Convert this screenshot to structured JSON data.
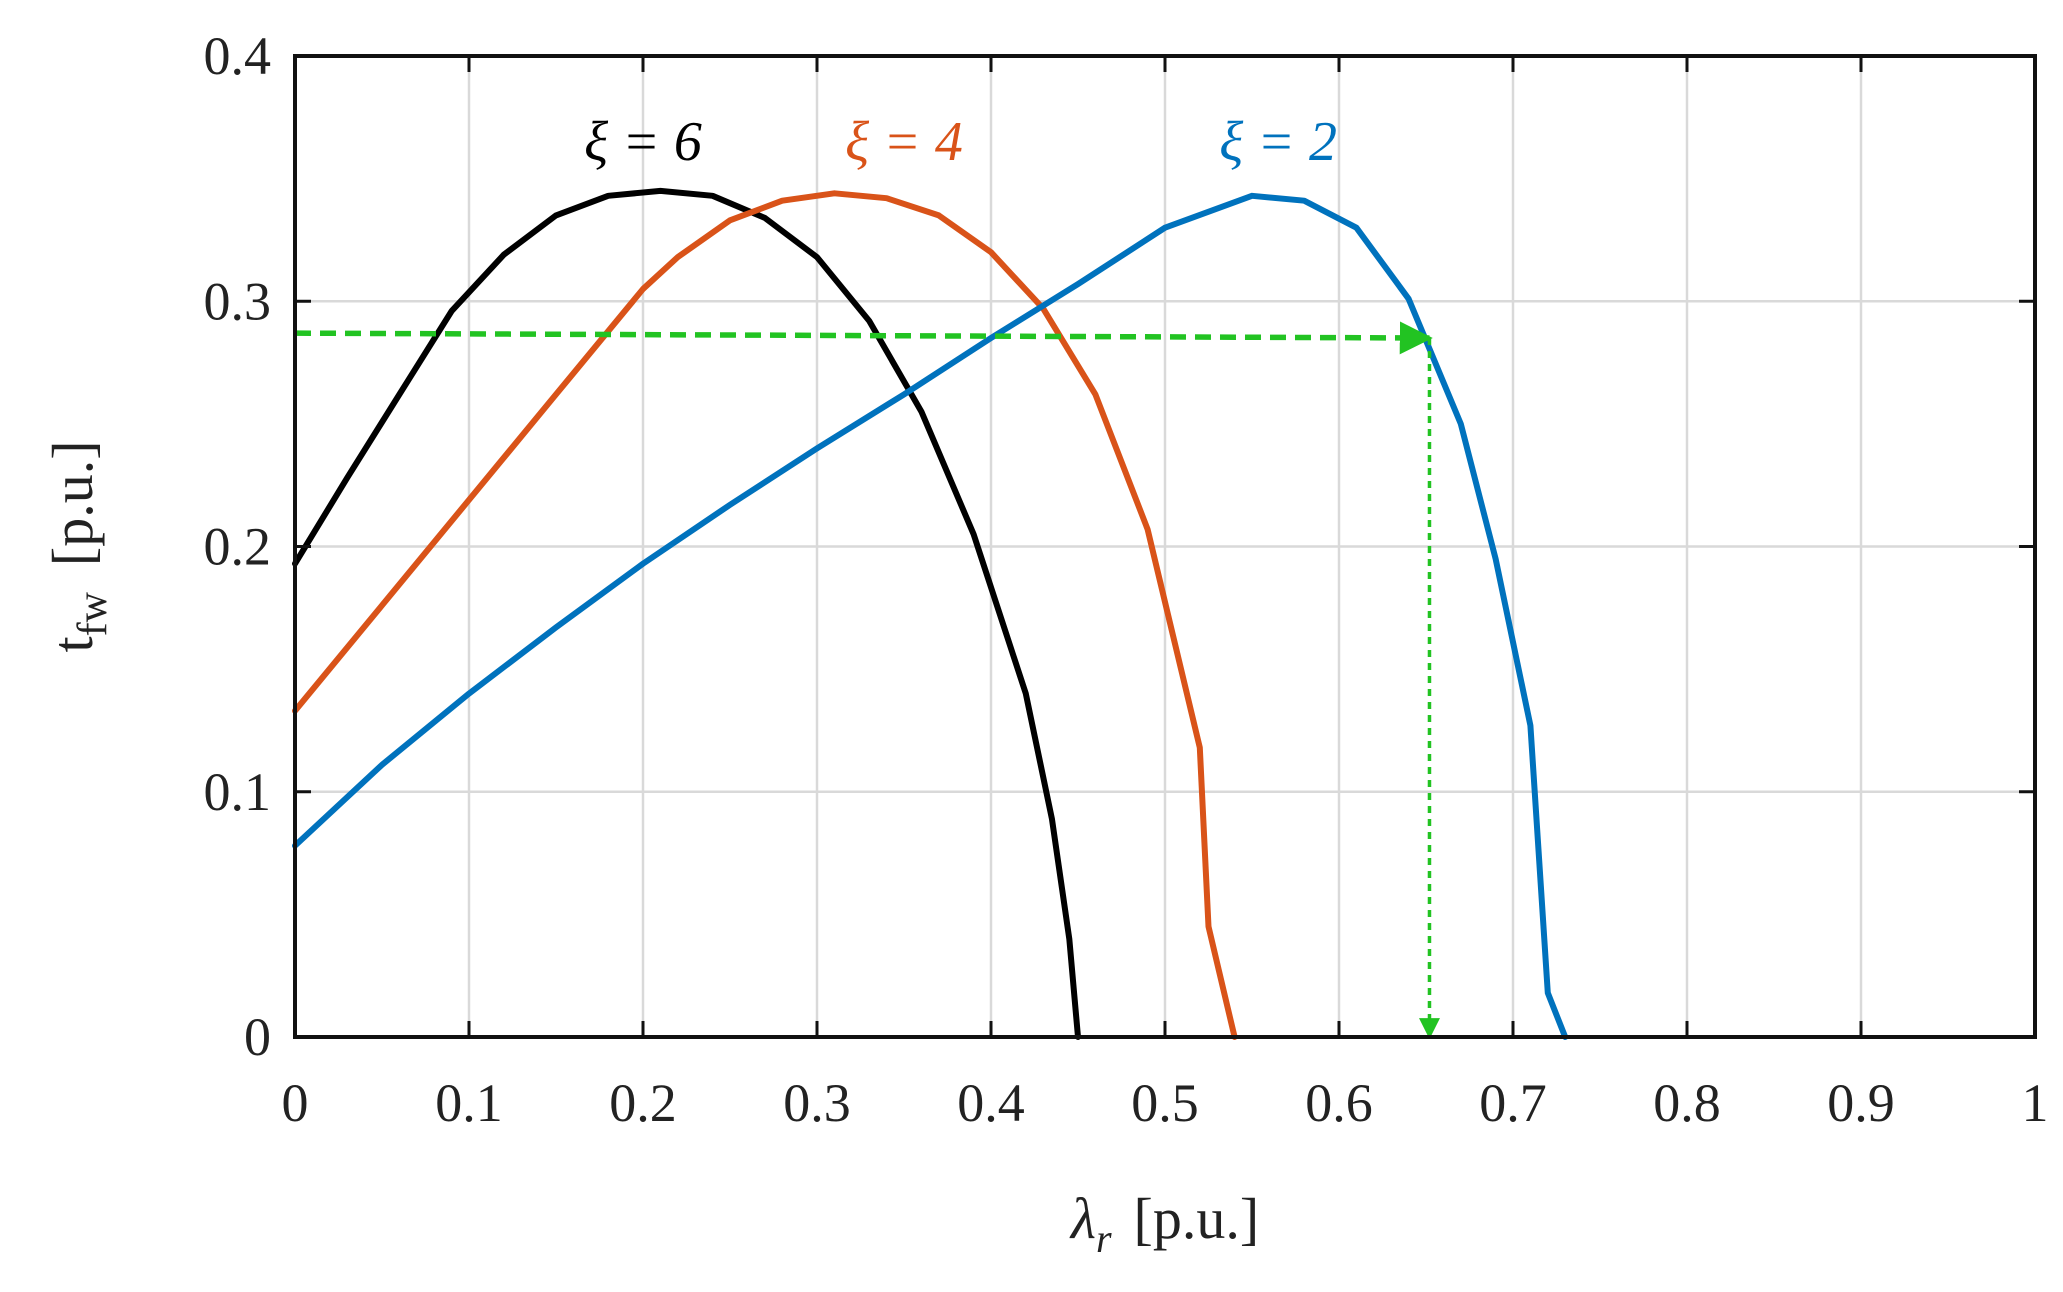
{
  "chart_data": {
    "type": "line",
    "xlabel_symbol": "λ",
    "xlabel_subscript": "r",
    "xlabel_unit": "[p.u.]",
    "ylabel_symbol": "t",
    "ylabel_subscript": "fw",
    "ylabel_unit": "[p.u.]",
    "xlim": [
      0,
      1
    ],
    "ylim": [
      0,
      0.4
    ],
    "xticks": [
      "0",
      "0.1",
      "0.2",
      "0.3",
      "0.4",
      "0.5",
      "0.6",
      "0.7",
      "0.8",
      "0.9",
      "1"
    ],
    "yticks": [
      "0",
      "0.1",
      "0.2",
      "0.3",
      "0.4"
    ],
    "grid": true,
    "series": [
      {
        "name": "ξ = 6",
        "color": "#000000",
        "x": [
          0,
          0.03,
          0.06,
          0.09,
          0.12,
          0.15,
          0.18,
          0.21,
          0.24,
          0.27,
          0.3,
          0.33,
          0.36,
          0.39,
          0.42,
          0.435,
          0.445,
          0.45
        ],
        "y": [
          0.193,
          0.228,
          0.262,
          0.296,
          0.319,
          0.335,
          0.343,
          0.345,
          0.343,
          0.334,
          0.318,
          0.292,
          0.255,
          0.205,
          0.14,
          0.089,
          0.04,
          0.0
        ]
      },
      {
        "name": "ξ = 4",
        "color": "#D95319",
        "x": [
          0,
          0.05,
          0.1,
          0.15,
          0.2,
          0.22,
          0.25,
          0.28,
          0.31,
          0.34,
          0.37,
          0.4,
          0.43,
          0.46,
          0.49,
          0.52,
          0.525,
          0.54
        ],
        "y": [
          0.133,
          0.176,
          0.219,
          0.262,
          0.305,
          0.318,
          0.333,
          0.341,
          0.344,
          0.342,
          0.335,
          0.32,
          0.297,
          0.262,
          0.207,
          0.118,
          0.045,
          0.0
        ]
      },
      {
        "name": "ξ = 2",
        "color": "#0072BD",
        "x": [
          0,
          0.05,
          0.1,
          0.15,
          0.2,
          0.25,
          0.3,
          0.35,
          0.4,
          0.45,
          0.5,
          0.55,
          0.58,
          0.61,
          0.64,
          0.67,
          0.69,
          0.71,
          0.72,
          0.73
        ],
        "y": [
          0.078,
          0.111,
          0.14,
          0.167,
          0.193,
          0.217,
          0.24,
          0.262,
          0.285,
          0.307,
          0.33,
          0.343,
          0.341,
          0.33,
          0.301,
          0.25,
          0.195,
          0.127,
          0.018,
          0.0
        ]
      }
    ],
    "annotations": [
      {
        "text": "ξ = 6",
        "color": "#000000",
        "x": 0.2,
        "y": 0.365
      },
      {
        "text": "ξ = 4",
        "color": "#D95319",
        "x": 0.35,
        "y": 0.365
      },
      {
        "text": "ξ = 2",
        "color": "#0072BD",
        "x": 0.565,
        "y": 0.365
      }
    ],
    "guide": {
      "color": "#22C322",
      "horizontal": {
        "x": [
          0,
          0.652
        ],
        "y": [
          0.287,
          0.285
        ]
      },
      "vertical": {
        "x": [
          0.652,
          0.652
        ],
        "y": [
          0.285,
          0.0
        ]
      }
    }
  }
}
